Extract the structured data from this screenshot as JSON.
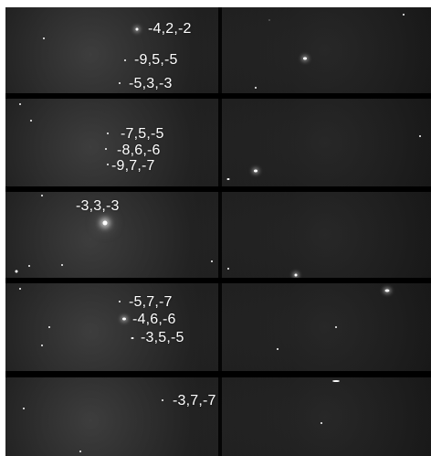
{
  "panels": [
    {
      "labels": [
        "-4,2,-2",
        "-9,5,-5",
        "-5,3,-3"
      ]
    },
    {
      "labels": [
        "-7,5,-5",
        "-8,6,-6",
        "-9,7,-7"
      ]
    },
    {
      "labels": [
        "-3,3,-3"
      ]
    },
    {
      "labels": [
        "-5,7,-7",
        "-4,6,-6",
        "-3,5,-5"
      ]
    },
    {
      "labels": [
        "-3,7,-7"
      ]
    }
  ]
}
